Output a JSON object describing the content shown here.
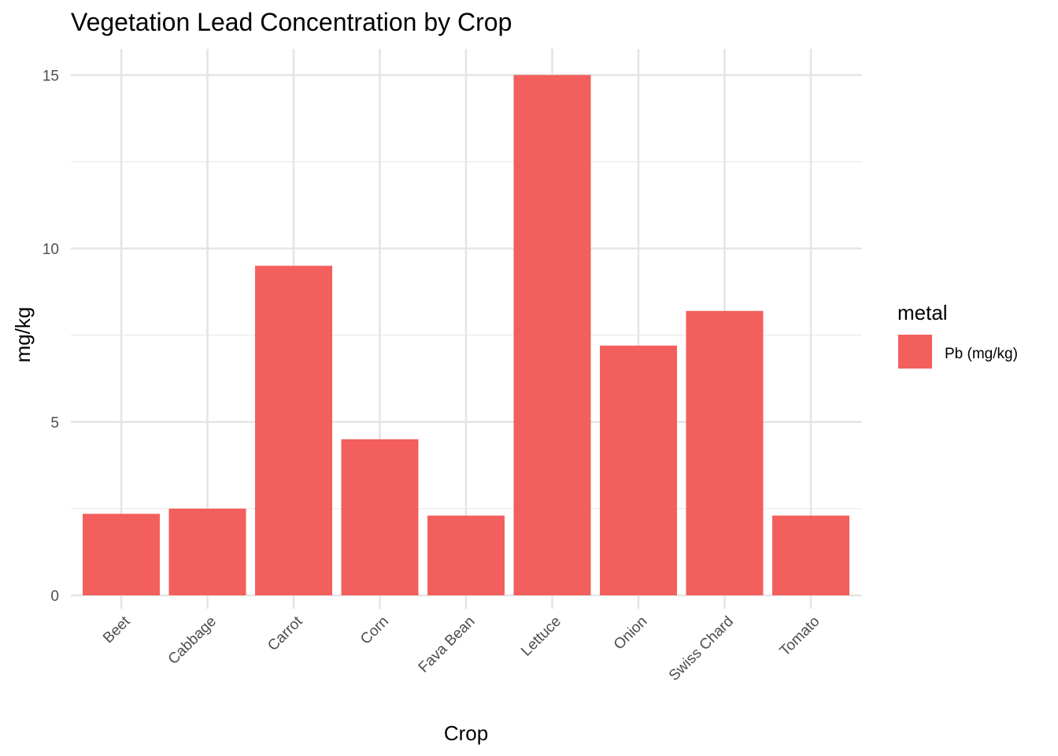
{
  "chart_data": {
    "type": "bar",
    "title": "Vegetation Lead Concentration by Crop",
    "xlabel": "Crop",
    "ylabel": "mg/kg",
    "categories": [
      "Beet",
      "Cabbage",
      "Carrot",
      "Corn",
      "Fava Bean",
      "Lettuce",
      "Onion",
      "Swiss Chard",
      "Tomato"
    ],
    "series": [
      {
        "name": "Pb (mg/kg)",
        "values": [
          2.35,
          2.5,
          9.5,
          4.5,
          2.3,
          15.0,
          7.2,
          8.2,
          2.3
        ],
        "color": "#F25F5C"
      }
    ],
    "ylim": [
      0,
      15.75
    ],
    "yticks": [
      0,
      5,
      10,
      15
    ],
    "ytick_labels": [
      "0",
      "5",
      "10",
      "15"
    ],
    "grid": true,
    "legend": {
      "title": "metal",
      "position": "right"
    }
  }
}
